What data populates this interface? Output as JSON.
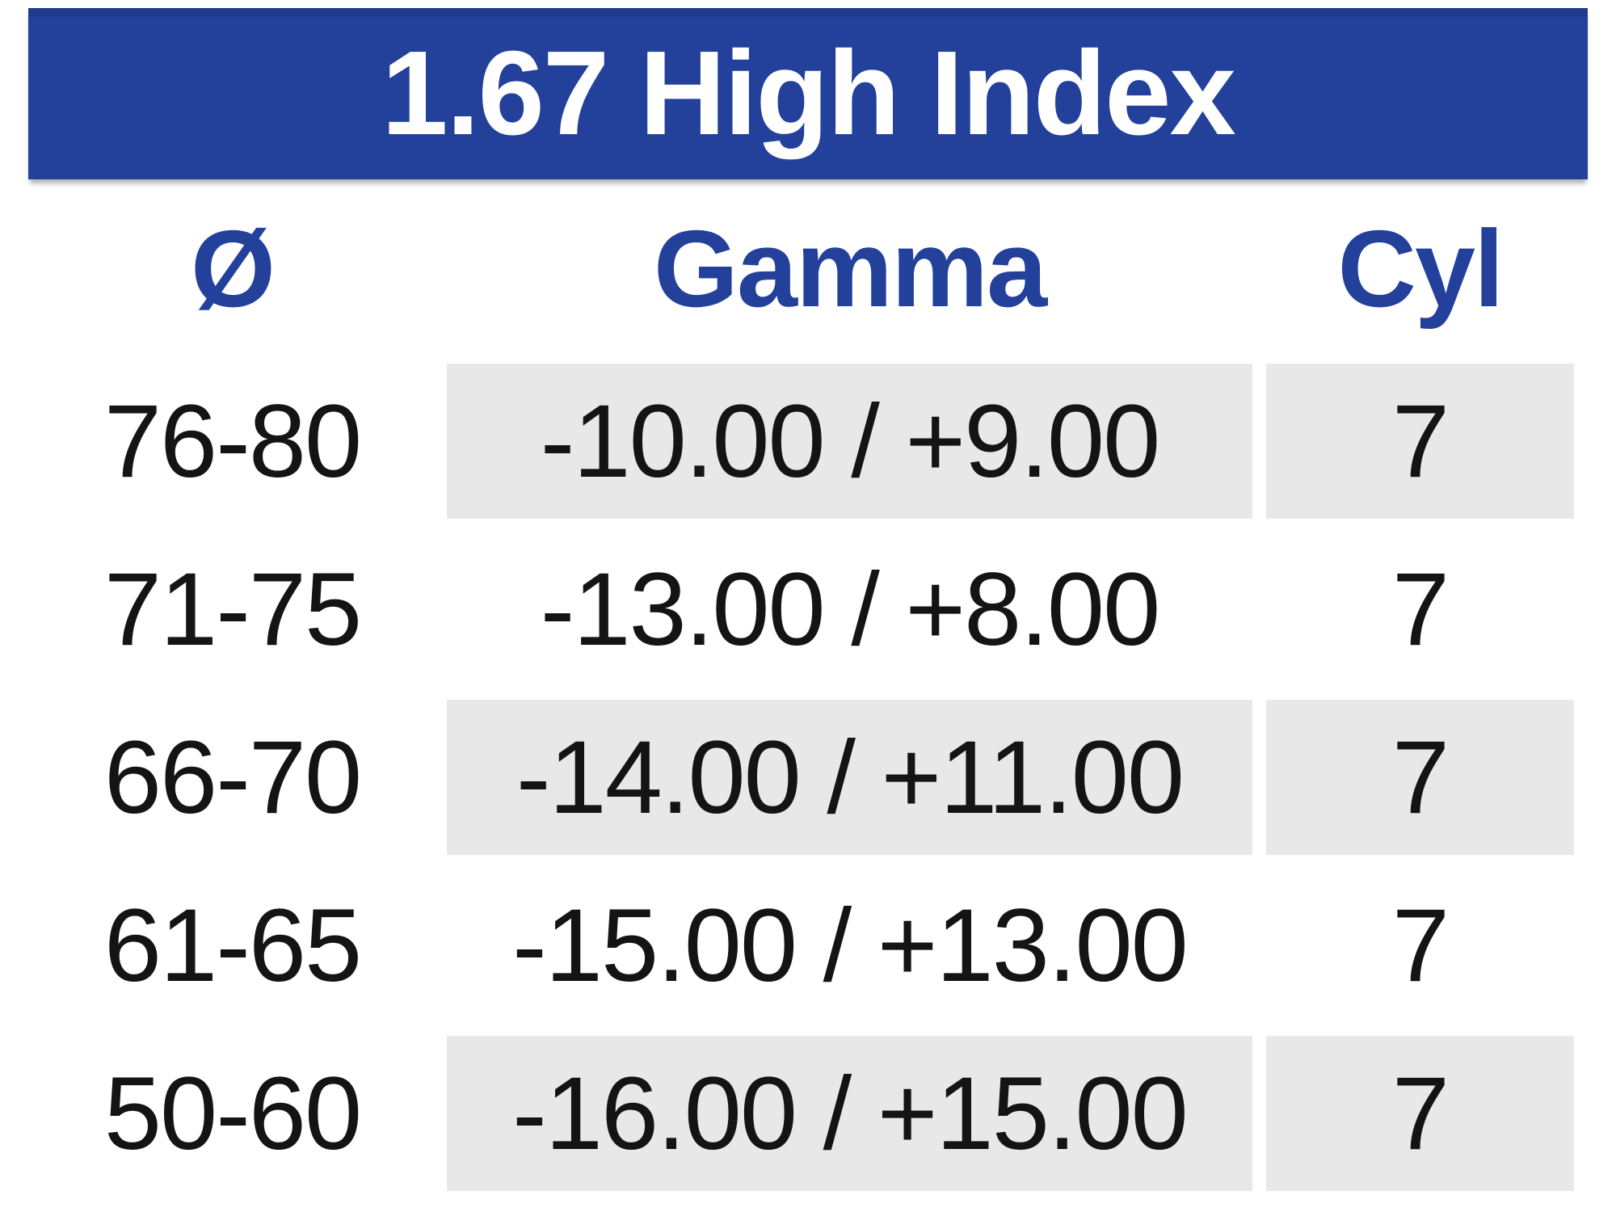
{
  "chart_data": {
    "type": "table",
    "title": "1.67 High Index",
    "columns": [
      "Ø",
      "Gamma",
      "Cyl"
    ],
    "rows": [
      [
        "76-80",
        "-10.00 / +9.00",
        "7"
      ],
      [
        "71-75",
        "-13.00 / +8.00",
        "7"
      ],
      [
        "66-70",
        "-14.00 / +11.00",
        "7"
      ],
      [
        "61-65",
        "-15.00 / +13.00",
        "7"
      ],
      [
        "50-60",
        "-16.00 / +15.00",
        "7"
      ]
    ]
  },
  "colors": {
    "banner_bg": "#23409B",
    "banner_text": "#FFFFFF",
    "header_text": "#23409B",
    "row_shade": "#E8E8E9",
    "body_text": "#141414"
  }
}
